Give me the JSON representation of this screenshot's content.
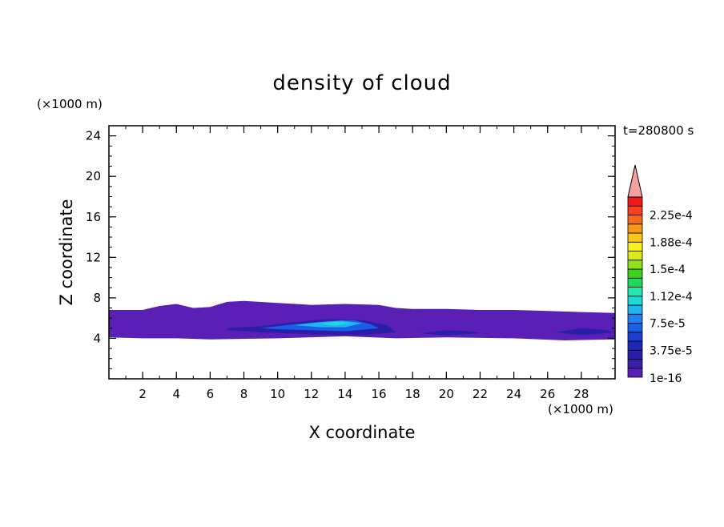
{
  "chart_data": {
    "type": "contour",
    "title": "density of cloud",
    "time_label": "t=280800 s",
    "xlabel": "X coordinate",
    "ylabel": "Z coordinate",
    "x_unit": "(×1000 m)",
    "z_unit": "(×1000 m)",
    "xlim": [
      0,
      30
    ],
    "zlim": [
      0,
      25
    ],
    "x_ticks": [
      2,
      4,
      6,
      8,
      10,
      12,
      14,
      16,
      18,
      20,
      22,
      24,
      26,
      28
    ],
    "z_ticks": [
      4,
      8,
      12,
      16,
      20,
      24
    ],
    "colorbar": {
      "levels": [
        "1e-16",
        "1.25e-5",
        "2.5e-5",
        "3.75e-5",
        "5e-5",
        "6.25e-5",
        "7.5e-5",
        "8.75e-5",
        "1e-4",
        "1.12e-4",
        "1.25e-4",
        "1.38e-4",
        "1.5e-4",
        "1.62e-4",
        "1.75e-4",
        "1.88e-4",
        "2e-4",
        "2.12e-4",
        "2.25e-4",
        "2.38e-4"
      ],
      "labels": [
        "1e-16",
        "3.75e-5",
        "7.5e-5",
        "1.12e-4",
        "1.5e-4",
        "1.88e-4",
        "2.25e-4"
      ],
      "colors": [
        "#5a1fb4",
        "#3a20a8",
        "#2a1ea8",
        "#1e28b8",
        "#1a3ed0",
        "#1a5ee8",
        "#2080f4",
        "#20b4f0",
        "#20d8d8",
        "#20e8b0",
        "#20d860",
        "#40d020",
        "#90e020",
        "#d8e818",
        "#f8f020",
        "#f8c818",
        "#f89818",
        "#f86818",
        "#f84020",
        "#f01818"
      ],
      "overflow_color": "#f4a0a0"
    },
    "regions": [
      {
        "name": "cloud-layer",
        "level": "1e-16",
        "color": "#5a1fb4",
        "top": [
          [
            0,
            6.8
          ],
          [
            2,
            6.8
          ],
          [
            3,
            7.2
          ],
          [
            4,
            7.4
          ],
          [
            5,
            7.0
          ],
          [
            6,
            7.1
          ],
          [
            7,
            7.6
          ],
          [
            8,
            7.7
          ],
          [
            10,
            7.5
          ],
          [
            12,
            7.3
          ],
          [
            14,
            7.4
          ],
          [
            16,
            7.3
          ],
          [
            17,
            7.0
          ],
          [
            18,
            6.9
          ],
          [
            20,
            6.9
          ],
          [
            22,
            6.8
          ],
          [
            24,
            6.8
          ],
          [
            26,
            6.7
          ],
          [
            28,
            6.6
          ],
          [
            30,
            6.5
          ]
        ],
        "bottom": [
          [
            30,
            3.9
          ],
          [
            27,
            3.8
          ],
          [
            24,
            4.0
          ],
          [
            20,
            4.1
          ],
          [
            17,
            4.0
          ],
          [
            14,
            4.2
          ],
          [
            10,
            4.0
          ],
          [
            6,
            3.9
          ],
          [
            4,
            4.0
          ],
          [
            2,
            4.0
          ],
          [
            0,
            4.1
          ]
        ]
      },
      {
        "name": "core-outer",
        "level": "1.25e-5",
        "color": "#2a1ea8",
        "top": [
          [
            7,
            5.0
          ],
          [
            9,
            5.2
          ],
          [
            11,
            5.6
          ],
          [
            13,
            5.9
          ],
          [
            15,
            5.8
          ],
          [
            16.5,
            5.3
          ],
          [
            17,
            4.6
          ]
        ],
        "bottom": [
          [
            17,
            4.6
          ],
          [
            15,
            4.3
          ],
          [
            12,
            4.4
          ],
          [
            9,
            4.6
          ],
          [
            7,
            4.8
          ]
        ]
      },
      {
        "name": "core-mid",
        "level": "5e-5",
        "color": "#1a5ee8",
        "top": [
          [
            9,
            5.0
          ],
          [
            11,
            5.4
          ],
          [
            13,
            5.7
          ],
          [
            14.5,
            5.8
          ],
          [
            15.5,
            5.4
          ],
          [
            16,
            5.0
          ]
        ],
        "bottom": [
          [
            16,
            5.0
          ],
          [
            14,
            4.7
          ],
          [
            12,
            4.8
          ],
          [
            10,
            4.9
          ],
          [
            9,
            5.0
          ]
        ]
      },
      {
        "name": "core-inner",
        "level": "7.5e-5",
        "color": "#20b4f0",
        "top": [
          [
            11,
            5.3
          ],
          [
            12.5,
            5.6
          ],
          [
            13.8,
            5.75
          ],
          [
            15,
            5.5
          ]
        ],
        "bottom": [
          [
            15,
            5.5
          ],
          [
            14,
            5.1
          ],
          [
            12.5,
            5.1
          ],
          [
            11,
            5.3
          ]
        ]
      },
      {
        "name": "core-peak",
        "level": "1e-4",
        "color": "#20d8d8",
        "top": [
          [
            12.5,
            5.45
          ],
          [
            13.5,
            5.65
          ],
          [
            14.3,
            5.5
          ]
        ],
        "bottom": [
          [
            14.3,
            5.5
          ],
          [
            13.5,
            5.25
          ],
          [
            12.5,
            5.45
          ]
        ]
      },
      {
        "name": "east-patch",
        "level": "1.25e-5",
        "color": "#2a1ea8",
        "top": [
          [
            18.5,
            4.5
          ],
          [
            20,
            4.8
          ],
          [
            21.5,
            4.7
          ],
          [
            22,
            4.5
          ]
        ],
        "bottom": [
          [
            22,
            4.5
          ],
          [
            20,
            4.3
          ],
          [
            18.5,
            4.5
          ]
        ]
      },
      {
        "name": "far-east-patch",
        "level": "1.25e-5",
        "color": "#2a1ea8",
        "top": [
          [
            26.5,
            4.6
          ],
          [
            28,
            5.0
          ],
          [
            29.5,
            4.8
          ],
          [
            30,
            4.6
          ]
        ],
        "bottom": [
          [
            30,
            4.6
          ],
          [
            28,
            4.3
          ],
          [
            26.5,
            4.6
          ]
        ]
      }
    ]
  }
}
